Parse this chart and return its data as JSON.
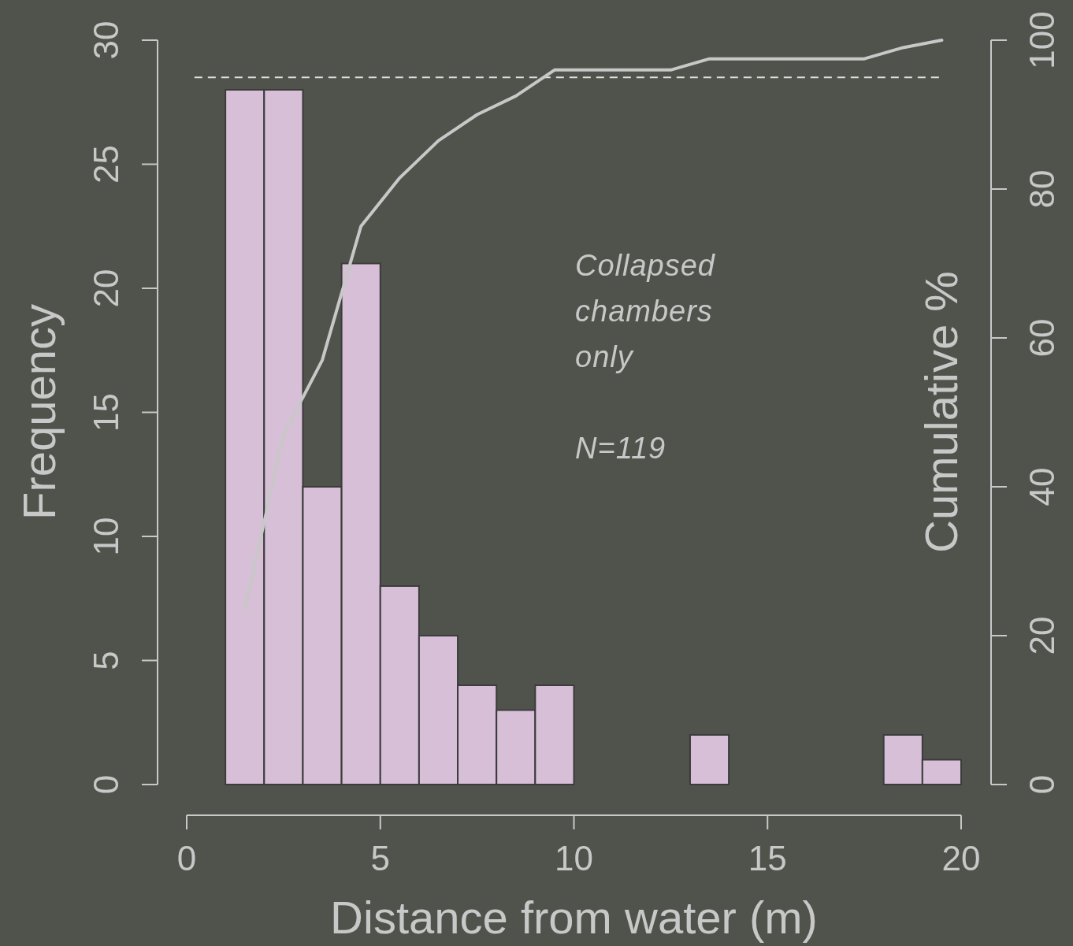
{
  "chart_data": {
    "type": "histogram",
    "xlabel": "Distance from water (m)",
    "ylabel": "Frequency",
    "y2label": "Cumulative %",
    "bins": [
      1,
      2,
      3,
      4,
      5,
      6,
      7,
      8,
      9,
      10,
      11,
      12,
      13,
      14,
      15,
      16,
      17,
      18,
      19,
      20
    ],
    "values": [
      28,
      28,
      12,
      21,
      8,
      6,
      4,
      3,
      4,
      0,
      0,
      0,
      2,
      0,
      0,
      0,
      0,
      2,
      1
    ],
    "color": "#d8bfd8",
    "series": [
      {
        "type": "line",
        "axis": "y2",
        "color": "#c8c8c8",
        "x": [
          1.5,
          2.5,
          3.5,
          4.5,
          5.5,
          6.5,
          7.5,
          8.5,
          9.5,
          10.5,
          11.5,
          12.5,
          13.5,
          14.5,
          15.5,
          16.5,
          17.5,
          18.5,
          19.5
        ],
        "values": [
          23.5,
          47,
          57,
          75,
          81.5,
          86.5,
          90,
          92.5,
          96,
          96,
          96,
          96,
          97.5,
          97.5,
          97.5,
          97.5,
          97.5,
          99,
          100
        ]
      }
    ],
    "xlim": [
      0,
      20
    ],
    "xticks": [
      0,
      5,
      10,
      15,
      20
    ],
    "ylim": [
      0,
      30
    ],
    "yticks": [
      0,
      5,
      10,
      15,
      20,
      25,
      30
    ],
    "y2lim": [
      0,
      100
    ],
    "y2ticks": [
      0,
      20,
      40,
      60,
      80,
      100
    ],
    "ref_lines": [
      {
        "axis": "y2",
        "value": 95,
        "line_style": "dashed",
        "color": "#e0e0e0"
      }
    ],
    "annotations": [
      {
        "text": "Collapsed chambers only"
      },
      {
        "text": "N=119"
      }
    ]
  }
}
